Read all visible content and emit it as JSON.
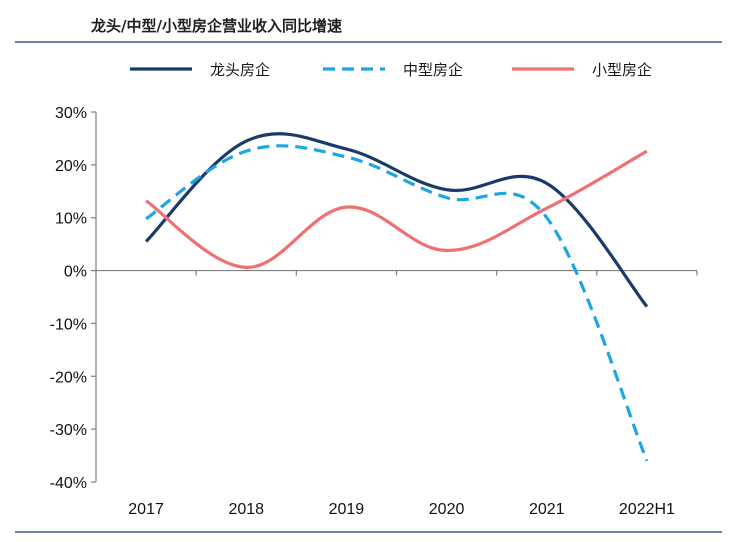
{
  "chart_data": {
    "type": "line",
    "title": "龙头/中型/小型房企营业收入同比增速",
    "categories": [
      "2017",
      "2018",
      "2019",
      "2020",
      "2021",
      "2022H1"
    ],
    "ylim": [
      -40,
      30
    ],
    "y_ticks": [
      "30%",
      "20%",
      "10%",
      "0%",
      "-10%",
      "-20%",
      "-30%",
      "-40%"
    ],
    "y_tick_values": [
      30,
      20,
      10,
      0,
      -10,
      -20,
      -30,
      -40
    ],
    "grid": false,
    "legend_position": "top",
    "series": [
      {
        "name": "龙头房企",
        "values": [
          5.5,
          24.5,
          23.0,
          15.3,
          16.5,
          -6.8
        ],
        "color": "#1b3a6b",
        "dash": "solid"
      },
      {
        "name": "中型房企",
        "values": [
          9.8,
          22.6,
          21.5,
          13.8,
          10.0,
          -36.0
        ],
        "color": "#1fa6e0",
        "dash": "dashed"
      },
      {
        "name": "小型房企",
        "values": [
          13.2,
          0.6,
          12.0,
          3.8,
          11.8,
          22.6
        ],
        "color": "#f07070",
        "dash": "solid"
      }
    ]
  }
}
